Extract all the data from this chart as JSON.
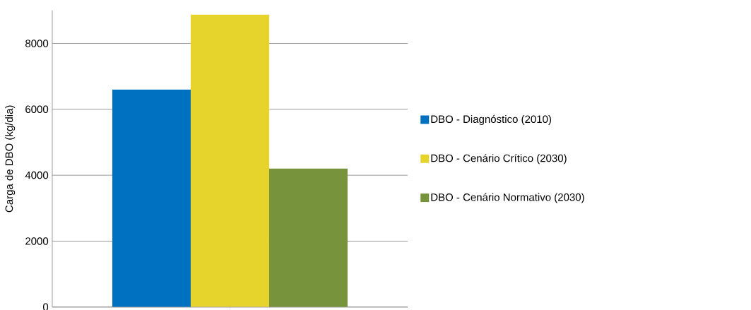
{
  "chart_data": {
    "type": "bar",
    "ylabel": "Carga de DBO (kg/dia)",
    "categories": [
      null
    ],
    "series": [
      {
        "name": "DBO - Diagnóstico (2010)",
        "color": "#0070c0",
        "values": [
          6600
        ]
      },
      {
        "name": "DBO - Cenário Crítico (2030)",
        "color": "#e6d32c",
        "values": [
          8870
        ]
      },
      {
        "name": "DBO - Cenário Normativo (2030)",
        "color": "#77933c",
        "values": [
          4200
        ]
      }
    ],
    "ylim": [
      0,
      9000
    ],
    "yticks": [
      0,
      2000,
      4000,
      6000,
      8000
    ],
    "grid": "y",
    "legend": "right"
  }
}
